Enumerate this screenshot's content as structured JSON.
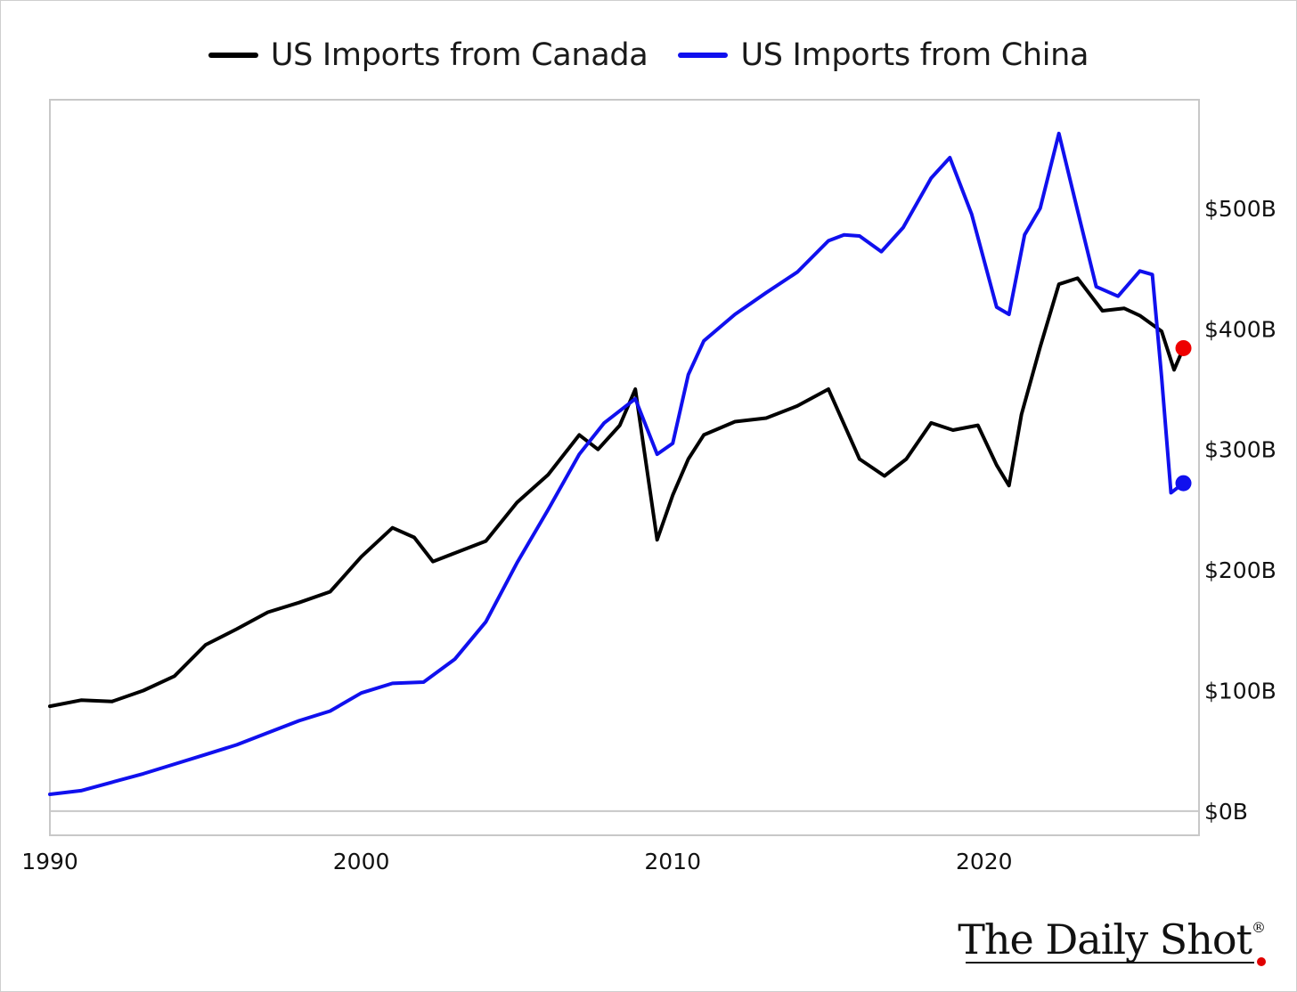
{
  "legend": {
    "canada_label": "US Imports from Canada",
    "china_label": "US Imports from China"
  },
  "brand": {
    "name": "The Daily Shot",
    "mark": "®"
  },
  "colors": {
    "canada": "#000000",
    "china": "#1010ee",
    "canada_dot": "#ee0000",
    "china_dot": "#1010ee"
  },
  "chart_data": {
    "type": "line",
    "title": "",
    "xlabel": "",
    "ylabel": "",
    "xlim": [
      1990,
      2026.9
    ],
    "ylim": [
      -20,
      590
    ],
    "x_ticks": [
      1990,
      2000,
      2010,
      2020
    ],
    "x_tick_labels": [
      "1990",
      "2000",
      "2010",
      "2020"
    ],
    "y_ticks": [
      0,
      100,
      200,
      300,
      400,
      500
    ],
    "y_tick_labels": [
      "$0B",
      "$100B",
      "$200B",
      "$300B",
      "$400B",
      "$500B"
    ],
    "y_axis_side": "right",
    "legend_position": "top-center",
    "grid": false,
    "series": [
      {
        "name": "US Imports from Canada",
        "color": "#000000",
        "x": [
          1990,
          1991,
          1992,
          1993,
          1994,
          1995,
          1996,
          1997,
          1998,
          1999,
          2000,
          2001,
          2001.7,
          2002.3,
          2003,
          2004,
          2005,
          2006,
          2007,
          2007.6,
          2008.3,
          2008.8,
          2009.5,
          2010,
          2010.5,
          2011,
          2012,
          2013,
          2014,
          2015,
          2016,
          2016.8,
          2017.5,
          2018.3,
          2019,
          2019.8,
          2020.4,
          2020.8,
          2021.2,
          2021.8,
          2022.4,
          2023,
          2023.8,
          2024.5,
          2025,
          2025.7,
          2026.1,
          2026.4
        ],
        "y": [
          87,
          92,
          91,
          100,
          112,
          138,
          151,
          165,
          173,
          182,
          211,
          235,
          227,
          207,
          214,
          224,
          256,
          279,
          312,
          300,
          320,
          350,
          225,
          262,
          292,
          312,
          323,
          326,
          336,
          350,
          292,
          278,
          292,
          322,
          316,
          320,
          287,
          270,
          329,
          385,
          437,
          442,
          415,
          417,
          411,
          398,
          366,
          384
        ]
      },
      {
        "name": "US Imports from China",
        "color": "#1010ee",
        "x": [
          1990,
          1991,
          1992,
          1993,
          1994,
          1995,
          1996,
          1997,
          1998,
          1999,
          2000,
          2001,
          2002,
          2003,
          2004,
          2005,
          2006,
          2007,
          2007.8,
          2008.8,
          2009.5,
          2010,
          2010.5,
          2011,
          2012,
          2013,
          2014,
          2015,
          2015.5,
          2016,
          2016.7,
          2017.4,
          2018.3,
          2018.9,
          2019.6,
          2020.4,
          2020.8,
          2021.3,
          2021.8,
          2022.4,
          2023,
          2023.6,
          2024.3,
          2025,
          2025.4,
          2025.7,
          2026,
          2026.4
        ],
        "y": [
          14,
          17,
          24,
          31,
          39,
          47,
          55,
          65,
          75,
          83,
          98,
          106,
          107,
          126,
          157,
          206,
          250,
          296,
          322,
          342,
          296,
          305,
          362,
          390,
          412,
          430,
          447,
          473,
          478,
          477,
          464,
          484,
          525,
          542,
          495,
          418,
          412,
          478,
          500,
          562,
          498,
          435,
          427,
          448,
          445,
          360,
          264,
          272
        ]
      }
    ],
    "end_markers": [
      {
        "series": "US Imports from Canada",
        "x": 2026.4,
        "y": 384,
        "color": "#ee0000"
      },
      {
        "series": "US Imports from China",
        "x": 2026.4,
        "y": 272,
        "color": "#1010ee"
      }
    ]
  }
}
